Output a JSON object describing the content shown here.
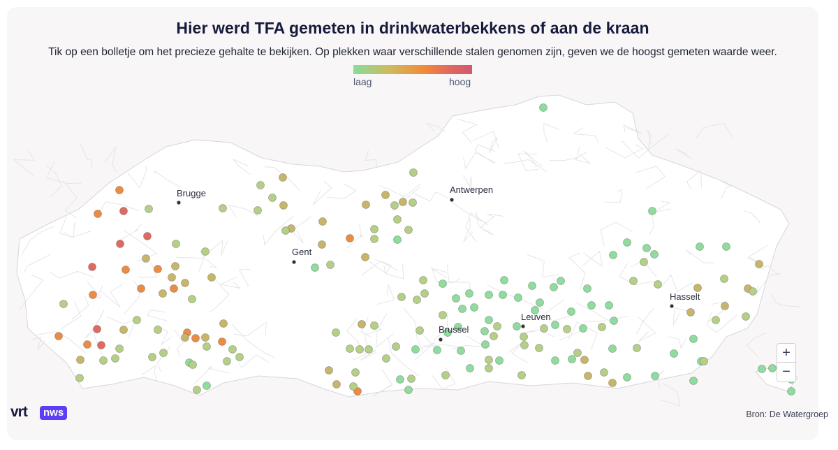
{
  "header": {
    "title": "Hier werd TFA gemeten in drinkwaterbekkens of aan de kraan",
    "subtitle": "Tik op een bolletje om het precieze gehalte te bekijken. Op plekken waar verschillende stalen genomen zijn, geven we de hoogst gemeten waarde weer."
  },
  "legend": {
    "low_label": "laag",
    "high_label": "hoog",
    "colors": [
      "#88dc9a",
      "#cdbb5e",
      "#f28a38",
      "#e06660",
      "#d45870"
    ]
  },
  "cities": [
    {
      "name": "Brugge"
    },
    {
      "name": "Gent"
    },
    {
      "name": "Antwerpen"
    },
    {
      "name": "Brussel"
    },
    {
      "name": "Leuven"
    },
    {
      "name": "Hasselt"
    }
  ],
  "controls": {
    "zoom_in_label": "+",
    "zoom_out_label": "−"
  },
  "branding": {
    "logo_vrt": "vrt",
    "logo_nws": "nws"
  },
  "footer": {
    "source": "Bron: De Watergroep"
  },
  "marker_colors": {
    "green": "#8fdc9e",
    "light": "#b5cf86",
    "olive": "#c7b66a",
    "orange": "#ec8c44",
    "red": "#de6b62"
  }
}
